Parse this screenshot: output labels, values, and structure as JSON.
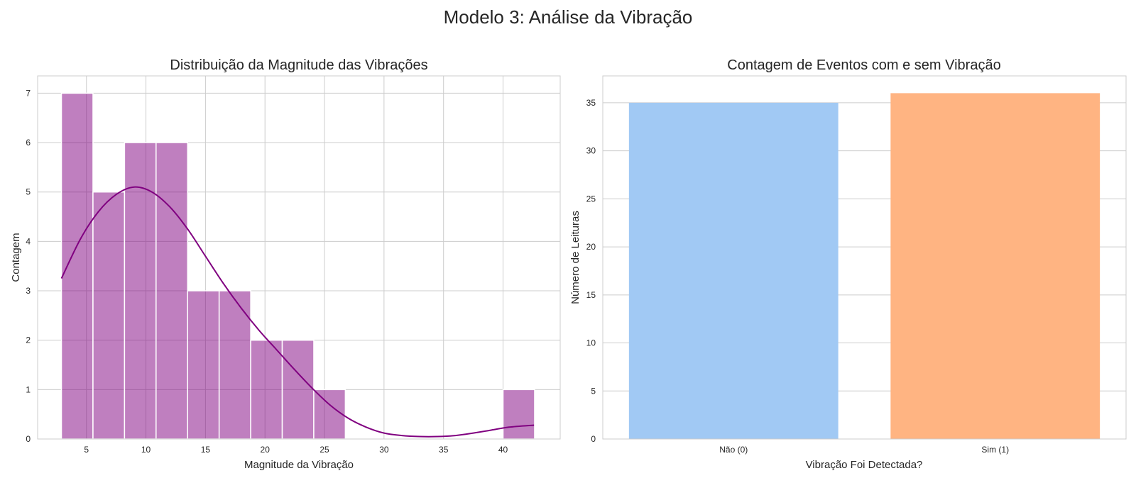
{
  "figure": {
    "suptitle": "Modelo 3: Análise da Vibração"
  },
  "chart_data": [
    {
      "type": "bar",
      "subtype": "histogram",
      "title": "Distribuição da Magnitude das Vibrações",
      "xlabel": "Magnitude da Vibração",
      "ylabel": "Contagem",
      "xlim": [
        0.9,
        44.8
      ],
      "ylim": [
        0,
        7.35
      ],
      "xticks": [
        5,
        10,
        15,
        20,
        25,
        30,
        35,
        40
      ],
      "yticks": [
        0,
        1,
        2,
        3,
        4,
        5,
        6,
        7
      ],
      "bin_edges": [
        2.9,
        5.55,
        8.2,
        10.85,
        13.5,
        16.15,
        18.8,
        21.45,
        24.1,
        26.75,
        29.4,
        32.05,
        34.7,
        37.35,
        40.0,
        42.65
      ],
      "counts": [
        7,
        5,
        6,
        6,
        3,
        3,
        2,
        2,
        1,
        0,
        0,
        0,
        0,
        0,
        1
      ],
      "bar_color": "#800080",
      "kde": {
        "color": "#800080",
        "x": [
          2.9,
          4.5,
          6,
          7.5,
          9,
          10.5,
          12,
          13.5,
          15,
          16.5,
          18,
          19.5,
          21,
          22.5,
          24,
          25.5,
          27,
          28.5,
          30,
          31.5,
          33,
          34.5,
          36,
          37.5,
          39,
          40.5,
          42.6
        ],
        "y": [
          3.25,
          4.05,
          4.6,
          4.95,
          5.1,
          5.0,
          4.7,
          4.25,
          3.7,
          3.15,
          2.65,
          2.2,
          1.8,
          1.4,
          1.02,
          0.68,
          0.42,
          0.24,
          0.12,
          0.07,
          0.05,
          0.05,
          0.07,
          0.12,
          0.18,
          0.24,
          0.28
        ]
      },
      "grid": true
    },
    {
      "type": "bar",
      "title": "Contagem de Eventos com e sem Vibração",
      "xlabel": "Vibração Foi Detectada?",
      "ylabel": "Número de Leituras",
      "categories": [
        "Não (0)",
        "Sim (1)"
      ],
      "values": [
        35,
        36
      ],
      "colors": [
        "#a1c9f4",
        "#ffb482"
      ],
      "ylim": [
        0,
        37.8
      ],
      "yticks": [
        0,
        5,
        10,
        15,
        20,
        25,
        30,
        35
      ],
      "grid": true
    }
  ]
}
